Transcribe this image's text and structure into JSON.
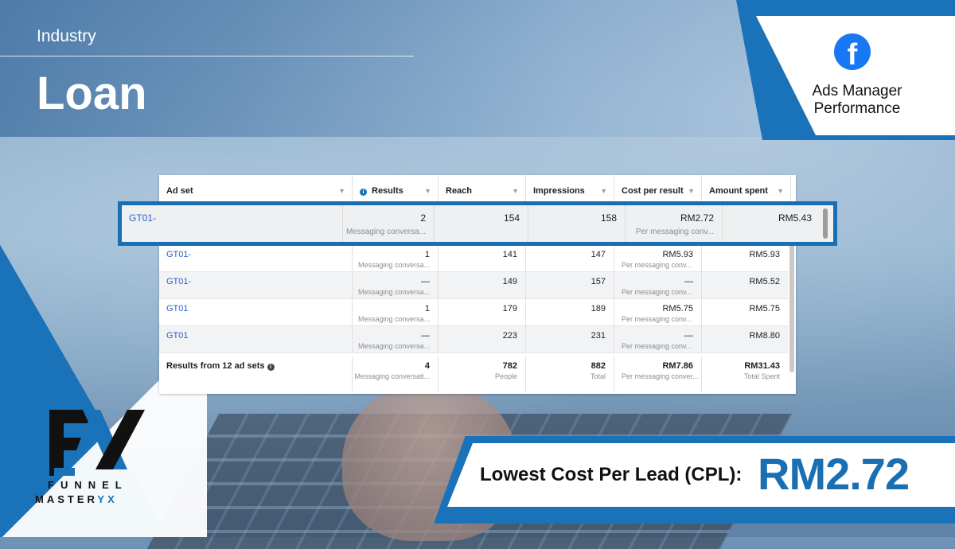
{
  "header": {
    "industry_label": "Industry",
    "industry_value": "Loan"
  },
  "badge": {
    "icon": "facebook-icon",
    "line1": "Ads Manager",
    "line2": "Performance"
  },
  "table": {
    "columns": [
      "Ad set",
      "Results",
      "Reach",
      "Impressions",
      "Cost per result",
      "Amount spent"
    ],
    "highlighted_row": {
      "ad_set": "GT01-",
      "results": "2",
      "results_sub": "Messaging conversa...",
      "reach": "154",
      "impressions": "158",
      "cost": "RM2.72",
      "cost_sub": "Per messaging conv...",
      "spent": "RM5.43"
    },
    "rows": [
      {
        "ad_set": "GT01-",
        "results": "1",
        "results_sub": "Messaging conversa...",
        "reach": "141",
        "impressions": "147",
        "cost": "RM5.93",
        "cost_sub": "Per messaging conv...",
        "spent": "RM5.93"
      },
      {
        "ad_set": "GT01-",
        "results": "—",
        "results_sub": "Messaging conversa...",
        "reach": "149",
        "impressions": "157",
        "cost": "—",
        "cost_sub": "Per messaging conv...",
        "spent": "RM5.52"
      },
      {
        "ad_set": "GT01",
        "results": "1",
        "results_sub": "Messaging conversa...",
        "reach": "179",
        "impressions": "189",
        "cost": "RM5.75",
        "cost_sub": "Per messaging conv...",
        "spent": "RM5.75"
      },
      {
        "ad_set": "GT01",
        "results": "—",
        "results_sub": "Messaging conversa...",
        "reach": "223",
        "impressions": "231",
        "cost": "—",
        "cost_sub": "Per messaging conv...",
        "spent": "RM8.80"
      }
    ],
    "total": {
      "label": "Results from 12 ad sets",
      "results": "4",
      "results_sub": "Messaging conversati...",
      "reach": "782",
      "reach_sub": "People",
      "impressions": "882",
      "impressions_sub": "Total",
      "cost": "RM7.86",
      "cost_sub": "Per messaging conver...",
      "spent": "RM31.43",
      "spent_sub": "Total Spent"
    }
  },
  "cpl": {
    "label": "Lowest Cost Per Lead (CPL):",
    "value": "RM2.72"
  },
  "logo": {
    "line1": "FUNNEL",
    "line2_a": "MASTER",
    "line2_b": "YX"
  },
  "colors": {
    "brand_blue": "#1a73b8",
    "facebook_blue": "#1877f2",
    "link_blue": "#2a63c4"
  }
}
